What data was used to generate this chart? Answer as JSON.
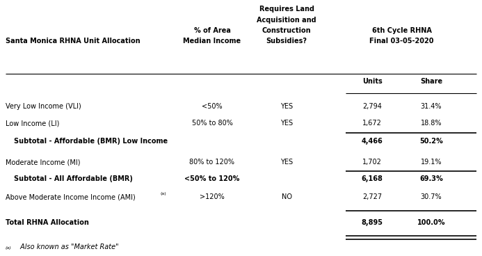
{
  "col1_header": "Santa Monica RHNA Unit Allocation",
  "col2_header_line1": "% of Area",
  "col2_header_line2": "Median Income",
  "col3_header_line1": "Requires Land",
  "col3_header_line2": "Acquisition and",
  "col3_header_line3": "Construction",
  "col3_header_line4": "Subsidies?",
  "col4_header_line1": "6th Cycle RHNA",
  "col4_header_line2": "Final 03-05-2020",
  "col4a_sub": "Units",
  "col4b_sub": "Share",
  "rows": [
    {
      "label": "Very Low Income (VLI)",
      "col2": "<50%",
      "col3": "YES",
      "col4a": "2,794",
      "col4b": "31.4%",
      "bold": false,
      "subtotal": false,
      "total": false,
      "superscript": false
    },
    {
      "label": "Low Income (LI)",
      "col2": "50% to 80%",
      "col3": "YES",
      "col4a": "1,672",
      "col4b": "18.8%",
      "bold": false,
      "subtotal": false,
      "total": false,
      "superscript": false
    },
    {
      "label": "Subtotal - Affordable (BMR) Low Income",
      "col2": "",
      "col3": "",
      "col4a": "4,466",
      "col4b": "50.2%",
      "bold": true,
      "subtotal": true,
      "total": false,
      "superscript": false
    },
    {
      "label": "Moderate Income (MI)",
      "col2": "80% to 120%",
      "col3": "YES",
      "col4a": "1,702",
      "col4b": "19.1%",
      "bold": false,
      "subtotal": false,
      "total": false,
      "superscript": false
    },
    {
      "label": "Subtotal - All Affordable (BMR)",
      "col2": "<50% to 120%",
      "col3": "",
      "col4a": "6,168",
      "col4b": "69.3%",
      "bold": true,
      "subtotal": true,
      "total": false,
      "superscript": false
    },
    {
      "label": "Above Moderate Income Income (AMI)",
      "col2": ">120%",
      "col3": "NO",
      "col4a": "2,727",
      "col4b": "30.7%",
      "bold": false,
      "subtotal": false,
      "total": false,
      "superscript": true
    },
    {
      "label": "Total RHNA Allocation",
      "col2": "",
      "col3": "",
      "col4a": "8,895",
      "col4b": "100.0%",
      "bold": true,
      "subtotal": false,
      "total": true,
      "superscript": false
    }
  ],
  "footnote_super": "(a)",
  "footnote_text": " Also known as \"Market Rate\"",
  "bg_color": "#ffffff",
  "text_color": "#000000",
  "line_color": "#000000",
  "fig_width": 6.93,
  "fig_height": 3.68,
  "dpi": 100
}
